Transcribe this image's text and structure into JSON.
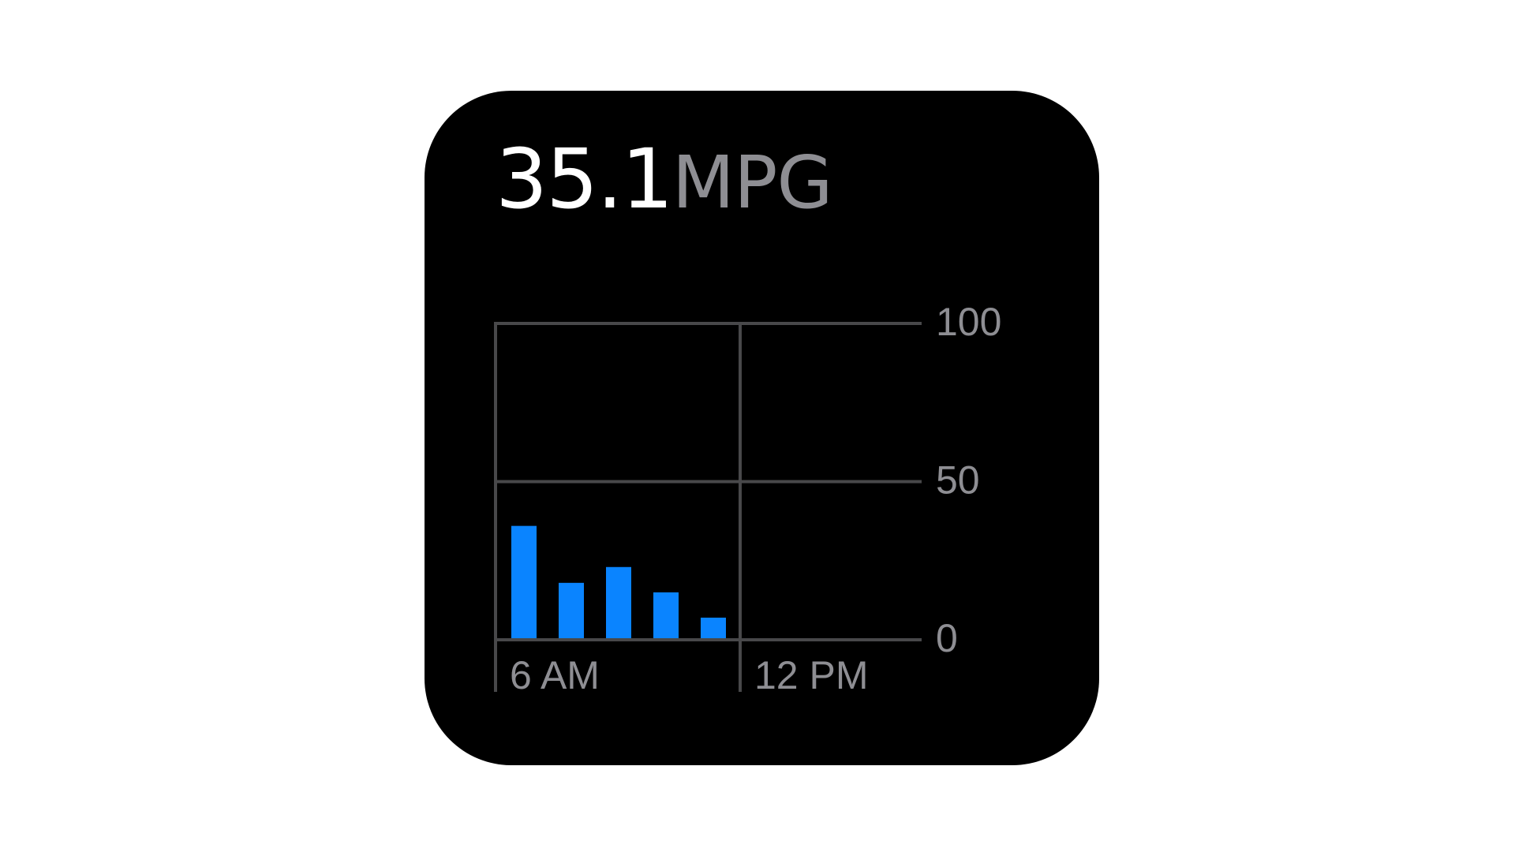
{
  "headline": {
    "value": "35.1",
    "unit": "MPG"
  },
  "colors": {
    "bar": "#0a84ff",
    "grid": "#48484a",
    "label": "#8e8e93",
    "background": "#000000"
  },
  "chart_data": {
    "type": "bar",
    "title": "",
    "xlabel": "",
    "ylabel": "",
    "ylim": [
      0,
      100
    ],
    "yticks": [
      0,
      50,
      100
    ],
    "x_tick_labels": [
      "6 AM",
      "12 PM"
    ],
    "series": [
      {
        "values": [
          36,
          18,
          23,
          15,
          7
        ]
      }
    ],
    "grid": true
  }
}
